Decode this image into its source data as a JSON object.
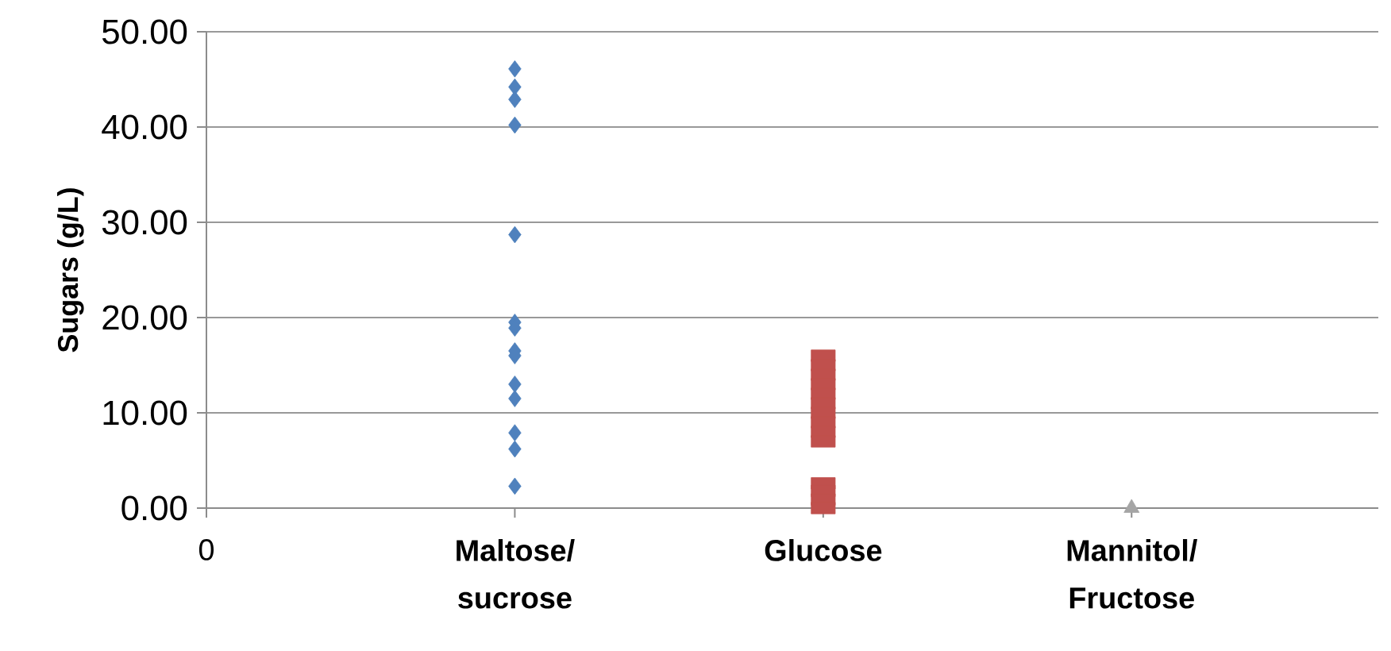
{
  "chart_data": {
    "type": "scatter",
    "ylabel": "**Sugars (g/L)**",
    "categories": [
      "0",
      "**Maltose/ sucrose**",
      "**Glucose**",
      "**Mannitol/ Fructose**"
    ],
    "ylim": [
      0,
      50
    ],
    "yticks": [
      {
        "value": 0,
        "label": "0.00"
      },
      {
        "value": 10,
        "label": "10.00"
      },
      {
        "value": 20,
        "label": "20.00"
      },
      {
        "value": 30,
        "label": "30.00"
      },
      {
        "value": 40,
        "label": "40.00"
      },
      {
        "value": 50,
        "label": "50.00"
      }
    ],
    "grid": "y",
    "series": [
      {
        "color": "#4f81bd",
        "marker": "diamond",
        "x": [
          "**Maltose/ sucrose**",
          "**Maltose/ sucrose**",
          "**Maltose/ sucrose**",
          "**Maltose/ sucrose**",
          "**Maltose/ sucrose**",
          "**Maltose/ sucrose**",
          "**Maltose/ sucrose**",
          "**Maltose/ sucrose**",
          "**Maltose/ sucrose**",
          "**Maltose/ sucrose**",
          "**Maltose/ sucrose**",
          "**Maltose/ sucrose**",
          "**Maltose/ sucrose**",
          "**Maltose/ sucrose**"
        ],
        "values": [
          46.1,
          44.2,
          42.9,
          40.2,
          28.7,
          19.5,
          18.9,
          16.5,
          16.0,
          13.0,
          11.5,
          7.9,
          6.2,
          2.3
        ]
      },
      {
        "color": "#c0504d",
        "marker": "square",
        "x": [
          "**Glucose**",
          "**Glucose**",
          "**Glucose**",
          "**Glucose**",
          "**Glucose**",
          "**Glucose**",
          "**Glucose**",
          "**Glucose**",
          "**Glucose**",
          "**Glucose**",
          "**Glucose**",
          "**Glucose**",
          "**Glucose**",
          "**Glucose**"
        ],
        "values": [
          16,
          15,
          14,
          13,
          12,
          11,
          10,
          9,
          8,
          7,
          2.6,
          1.8,
          0.9,
          0
        ]
      },
      {
        "color": "#a5a5a5",
        "marker": "triangle",
        "x": [
          "**Mannitol/ Fructose**"
        ],
        "values": [
          0
        ]
      }
    ]
  }
}
